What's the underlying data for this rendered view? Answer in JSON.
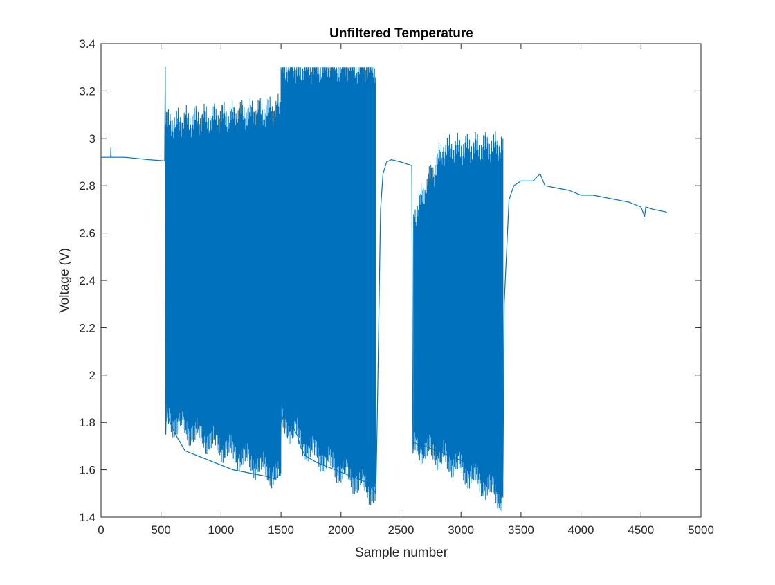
{
  "chart_data": {
    "type": "line",
    "title": "Unfiltered Temperature",
    "xlabel": "Sample number",
    "ylabel": "Voltage (V)",
    "xlim": [
      0,
      5000
    ],
    "ylim": [
      1.4,
      3.4
    ],
    "xticks": [
      0,
      500,
      1000,
      1500,
      2000,
      2500,
      3000,
      3500,
      4000,
      4500,
      5000
    ],
    "xtick_labels": [
      "0",
      "500",
      "1000",
      "1500",
      "2000",
      "2500",
      "3000",
      "3500",
      "4000",
      "4500",
      "5000"
    ],
    "yticks": [
      1.4,
      1.6,
      1.8,
      2,
      2.2,
      2.4,
      2.6,
      2.8,
      3,
      3.2,
      3.4
    ],
    "ytick_labels": [
      "1.4",
      "1.6",
      "1.8",
      "2",
      "2.2",
      "2.4",
      "2.6",
      "2.8",
      "3",
      "3.2",
      "3.4"
    ],
    "grid": false,
    "legend": false,
    "line_color": "#0072BD",
    "series": [
      {
        "name": "",
        "x": [
          0,
          80,
          82,
          84,
          200,
          400,
          530,
          535,
          540,
          548,
          560,
          620,
          700,
          800,
          900,
          1000,
          1100,
          1200,
          1300,
          1400,
          1450,
          1490,
          1500,
          1520,
          1560,
          1600,
          1640,
          1660,
          1700,
          1800,
          1900,
          2000,
          2100,
          2200,
          2250,
          2290,
          2300,
          2330,
          2350,
          2380,
          2420,
          2500,
          2590,
          2600,
          2605,
          2650,
          2700,
          2800,
          2900,
          3000,
          3100,
          3200,
          3250,
          3300,
          3340,
          3350,
          3360,
          3400,
          3440,
          3500,
          3600,
          3660,
          3700,
          3800,
          3900,
          4000,
          4100,
          4200,
          4300,
          4400,
          4500,
          4530,
          4540,
          4600,
          4700,
          4720
        ],
        "y": [
          2.92,
          2.92,
          2.96,
          2.92,
          2.92,
          2.91,
          2.905,
          3.3,
          1.75,
          2.02,
          1.82,
          1.75,
          1.68,
          1.66,
          1.64,
          1.62,
          1.6,
          1.59,
          1.58,
          1.57,
          1.56,
          1.58,
          1.8,
          1.83,
          1.8,
          1.78,
          1.74,
          1.7,
          1.66,
          1.63,
          1.61,
          1.59,
          1.57,
          1.55,
          1.53,
          1.5,
          1.75,
          2.7,
          2.85,
          2.9,
          2.91,
          2.9,
          2.885,
          1.67,
          1.72,
          1.7,
          1.7,
          1.68,
          1.66,
          1.64,
          1.62,
          1.6,
          1.58,
          1.55,
          1.48,
          1.6,
          2.3,
          2.74,
          2.8,
          2.82,
          2.82,
          2.85,
          2.8,
          2.79,
          2.78,
          2.76,
          2.76,
          2.75,
          2.74,
          2.73,
          2.71,
          2.67,
          2.71,
          2.7,
          2.69,
          2.685
        ]
      }
    ],
    "oscillation_segments": [
      {
        "x_start": 540,
        "x_end": 1500,
        "upper_start": 3.06,
        "upper_end": 3.12,
        "lower_start": 1.82,
        "lower_end": 1.57
      },
      {
        "x_start": 1500,
        "x_end": 1640,
        "upper_start": 3.3,
        "upper_end": 3.3,
        "lower_start": 1.8,
        "lower_end": 1.75
      },
      {
        "x_start": 1640,
        "x_end": 2290,
        "upper_start": 3.3,
        "upper_end": 3.3,
        "lower_start": 1.72,
        "lower_end": 1.5
      },
      {
        "x_start": 2605,
        "x_end": 2850,
        "upper_start": 2.67,
        "upper_end": 2.95,
        "lower_start": 1.7,
        "lower_end": 1.66
      },
      {
        "x_start": 2850,
        "x_end": 3350,
        "upper_start": 2.95,
        "upper_end": 2.97,
        "lower_start": 1.66,
        "lower_end": 1.48
      }
    ]
  }
}
